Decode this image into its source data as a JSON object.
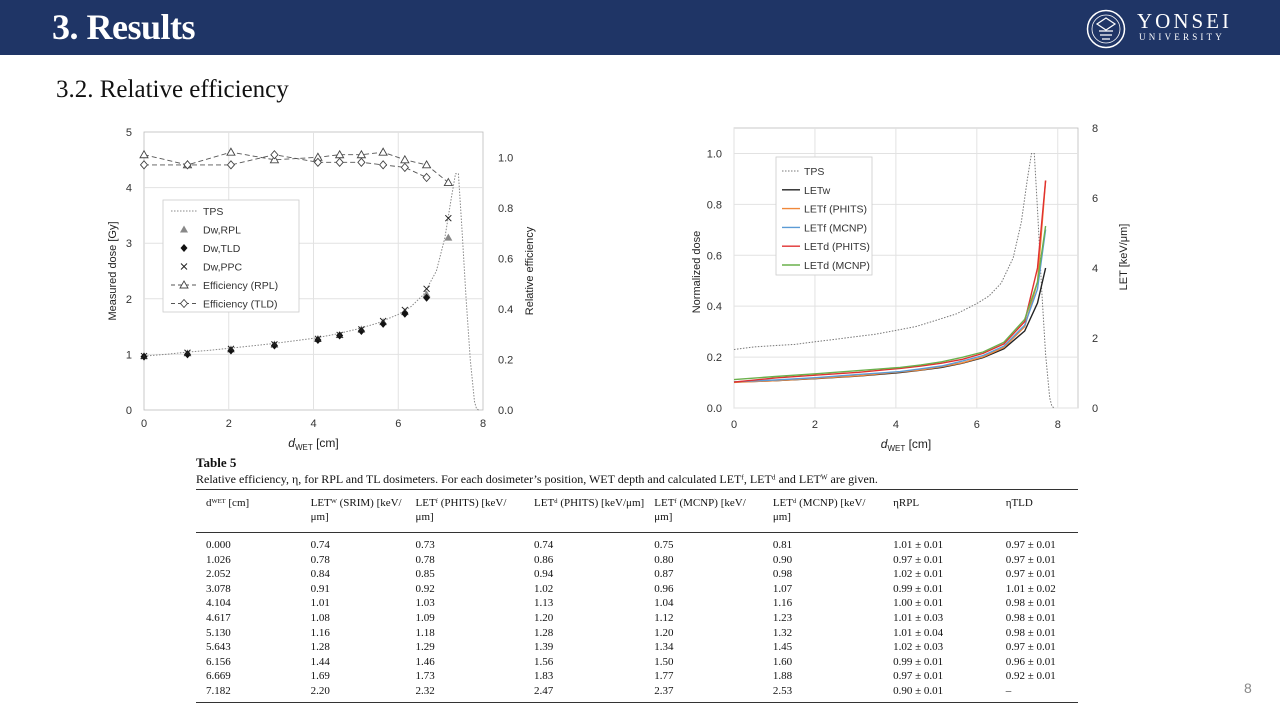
{
  "header": {
    "title": "3. Results",
    "university": "YONSEI",
    "university_sub": "UNIVERSITY"
  },
  "subtitle": "3.2. Relative efficiency",
  "colors": {
    "header_bg": "#1f3566",
    "phits_f": "#f0883a",
    "mcnp_f": "#5b9bd5",
    "phits_d": "#e03030",
    "mcnp_d": "#6ab04c",
    "letw": "#222222"
  },
  "chart_data": [
    {
      "type": "scatter",
      "ylabel_left": "Measured dose [Gy]",
      "ylabel_right": "Relative efficiency",
      "xlabel_main": "d",
      "xlabel_sub": "WET",
      "xlabel_unit": " [cm]",
      "xlim": [
        0,
        8
      ],
      "ylim_left": [
        0,
        5
      ],
      "ylim_right": [
        0,
        1.1
      ],
      "xticks": [
        0,
        2,
        4,
        6,
        8
      ],
      "yticks_left": [
        0,
        1,
        2,
        3,
        4,
        5
      ],
      "yticks_right": [
        0.0,
        0.2,
        0.4,
        0.6,
        0.8,
        1.0
      ],
      "legend": [
        "TPS",
        "Dw,RPL",
        "Dw,TLD",
        "Dw,PPC",
        "Efficiency (RPL)",
        "Efficiency (TLD)"
      ],
      "tps": {
        "x": [
          0,
          0.5,
          1,
          1.5,
          2,
          2.5,
          3,
          3.5,
          4,
          4.5,
          5,
          5.5,
          6,
          6.3,
          6.6,
          6.9,
          7.1,
          7.25,
          7.35,
          7.42,
          7.5,
          7.6,
          7.7,
          7.8,
          7.85,
          7.9
        ],
        "y": [
          0.97,
          1.0,
          1.04,
          1.07,
          1.11,
          1.15,
          1.19,
          1.24,
          1.29,
          1.36,
          1.45,
          1.56,
          1.72,
          1.86,
          2.08,
          2.5,
          3.1,
          3.8,
          4.25,
          4.25,
          3.3,
          2.0,
          0.9,
          0.15,
          0.02,
          0.0
        ]
      },
      "dw_rpl": {
        "x": [
          0,
          1.026,
          2.052,
          3.078,
          4.104,
          4.617,
          5.13,
          5.643,
          6.156,
          6.669,
          7.182
        ],
        "y": [
          0.97,
          1.02,
          1.09,
          1.18,
          1.28,
          1.35,
          1.45,
          1.58,
          1.76,
          2.08,
          3.1
        ]
      },
      "dw_tld": {
        "x": [
          0,
          1.026,
          2.052,
          3.078,
          4.104,
          4.617,
          5.13,
          5.643,
          6.156,
          6.669
        ],
        "y": [
          0.96,
          1.0,
          1.07,
          1.16,
          1.26,
          1.34,
          1.42,
          1.55,
          1.73,
          2.02
        ]
      },
      "dw_ppc": {
        "x": [
          0,
          1.026,
          2.052,
          3.078,
          4.104,
          4.617,
          5.13,
          5.643,
          6.156,
          6.669,
          7.182
        ],
        "y": [
          0.97,
          1.03,
          1.1,
          1.18,
          1.28,
          1.35,
          1.45,
          1.6,
          1.8,
          2.18,
          3.45
        ]
      },
      "eff_rpl": {
        "x": [
          0,
          1.026,
          2.052,
          3.078,
          4.104,
          4.617,
          5.13,
          5.643,
          6.156,
          6.669,
          7.182
        ],
        "y": [
          1.01,
          0.97,
          1.02,
          0.99,
          1.0,
          1.01,
          1.01,
          1.02,
          0.99,
          0.97,
          0.9
        ]
      },
      "eff_tld": {
        "x": [
          0,
          1.026,
          2.052,
          3.078,
          4.104,
          4.617,
          5.13,
          5.643,
          6.156,
          6.669
        ],
        "y": [
          0.97,
          0.97,
          0.97,
          1.01,
          0.98,
          0.98,
          0.98,
          0.97,
          0.96,
          0.92
        ]
      }
    },
    {
      "type": "line",
      "ylabel_left": "Normalized dose",
      "ylabel_right": "LET [keV/μm]",
      "xlabel_main": "d",
      "xlabel_sub": "WET",
      "xlabel_unit": " [cm]",
      "xlim": [
        0,
        8.5
      ],
      "ylim_left": [
        0,
        1.1
      ],
      "ylim_right": [
        0,
        8
      ],
      "xticks": [
        0,
        2,
        4,
        6,
        8
      ],
      "yticks_left": [
        0.0,
        0.2,
        0.4,
        0.6,
        0.8,
        1.0
      ],
      "yticks_right": [
        0,
        2,
        4,
        6,
        8
      ],
      "legend": [
        "TPS",
        "LETw",
        "LETf (PHITS)",
        "LETf (MCNP)",
        "LETd (PHITS)",
        "LETd (MCNP)"
      ],
      "tps": {
        "x": [
          0,
          0.5,
          1,
          1.5,
          2,
          2.5,
          3,
          3.5,
          4,
          4.5,
          5,
          5.5,
          6,
          6.3,
          6.6,
          6.9,
          7.1,
          7.25,
          7.35,
          7.42,
          7.5,
          7.6,
          7.7,
          7.8,
          7.85,
          7.9
        ],
        "y": [
          0.23,
          0.24,
          0.245,
          0.25,
          0.26,
          0.27,
          0.28,
          0.29,
          0.305,
          0.32,
          0.345,
          0.37,
          0.41,
          0.44,
          0.49,
          0.59,
          0.73,
          0.9,
          1.0,
          1.0,
          0.78,
          0.47,
          0.21,
          0.04,
          0.01,
          0.0
        ]
      },
      "x_let": [
        0,
        1.026,
        2.052,
        3.078,
        4.104,
        4.617,
        5.13,
        5.643,
        6.156,
        6.669,
        7.182,
        7.5,
        7.7
      ],
      "series": [
        {
          "name": "LETw",
          "values": [
            0.74,
            0.78,
            0.84,
            0.91,
            1.01,
            1.08,
            1.16,
            1.28,
            1.44,
            1.69,
            2.2,
            3.0,
            4.0
          ]
        },
        {
          "name": "LETf (PHITS)",
          "values": [
            0.73,
            0.78,
            0.85,
            0.92,
            1.03,
            1.09,
            1.18,
            1.29,
            1.46,
            1.73,
            2.32,
            3.6,
            6.5
          ]
        },
        {
          "name": "LETf (MCNP)",
          "values": [
            0.75,
            0.8,
            0.87,
            0.96,
            1.04,
            1.12,
            1.2,
            1.34,
            1.5,
            1.77,
            2.37,
            3.4,
            5.1
          ]
        },
        {
          "name": "LETd (PHITS)",
          "values": [
            0.74,
            0.86,
            0.94,
            1.02,
            1.13,
            1.2,
            1.28,
            1.39,
            1.56,
            1.83,
            2.47,
            4.0,
            6.5
          ]
        },
        {
          "name": "LETd (MCNP)",
          "values": [
            0.81,
            0.9,
            0.98,
            1.07,
            1.16,
            1.23,
            1.32,
            1.45,
            1.6,
            1.88,
            2.53,
            3.6,
            5.2
          ]
        }
      ]
    }
  ],
  "table": {
    "caption_label": "Table 5",
    "description": "Relative efficiency, η, for RPL and TL dosimeters. For each dosimeter’s position, WET depth and calculated LETᶠ, LETᵈ and LETᵂ are given.",
    "headers": [
      "dᵂᴱᵀ [cm]",
      "LETᵂ (SRIM) [keV/μm]",
      "LETᶠ (PHITS) [keV/μm]",
      "LETᵈ (PHITS) [keV/μm]",
      "LETᶠ (MCNP) [keV/μm]",
      "LETᵈ (MCNP) [keV/μm]",
      "ηRPL",
      "ηTLD"
    ],
    "rows": [
      [
        "0.000",
        "0.74",
        "0.73",
        "0.74",
        "0.75",
        "0.81",
        "1.01 ± 0.01",
        "0.97 ± 0.01"
      ],
      [
        "1.026",
        "0.78",
        "0.78",
        "0.86",
        "0.80",
        "0.90",
        "0.97 ± 0.01",
        "0.97 ± 0.01"
      ],
      [
        "2.052",
        "0.84",
        "0.85",
        "0.94",
        "0.87",
        "0.98",
        "1.02 ± 0.01",
        "0.97 ± 0.01"
      ],
      [
        "3.078",
        "0.91",
        "0.92",
        "1.02",
        "0.96",
        "1.07",
        "0.99 ± 0.01",
        "1.01 ± 0.02"
      ],
      [
        "4.104",
        "1.01",
        "1.03",
        "1.13",
        "1.04",
        "1.16",
        "1.00 ± 0.01",
        "0.98 ± 0.01"
      ],
      [
        "4.617",
        "1.08",
        "1.09",
        "1.20",
        "1.12",
        "1.23",
        "1.01 ± 0.03",
        "0.98 ± 0.01"
      ],
      [
        "5.130",
        "1.16",
        "1.18",
        "1.28",
        "1.20",
        "1.32",
        "1.01 ± 0.04",
        "0.98 ± 0.01"
      ],
      [
        "5.643",
        "1.28",
        "1.29",
        "1.39",
        "1.34",
        "1.45",
        "1.02 ± 0.03",
        "0.97 ± 0.01"
      ],
      [
        "6.156",
        "1.44",
        "1.46",
        "1.56",
        "1.50",
        "1.60",
        "0.99 ± 0.01",
        "0.96 ± 0.01"
      ],
      [
        "6.669",
        "1.69",
        "1.73",
        "1.83",
        "1.77",
        "1.88",
        "0.97 ± 0.01",
        "0.92 ± 0.01"
      ],
      [
        "7.182",
        "2.20",
        "2.32",
        "2.47",
        "2.37",
        "2.53",
        "0.90 ± 0.01",
        "–"
      ]
    ]
  },
  "page_number": "8"
}
